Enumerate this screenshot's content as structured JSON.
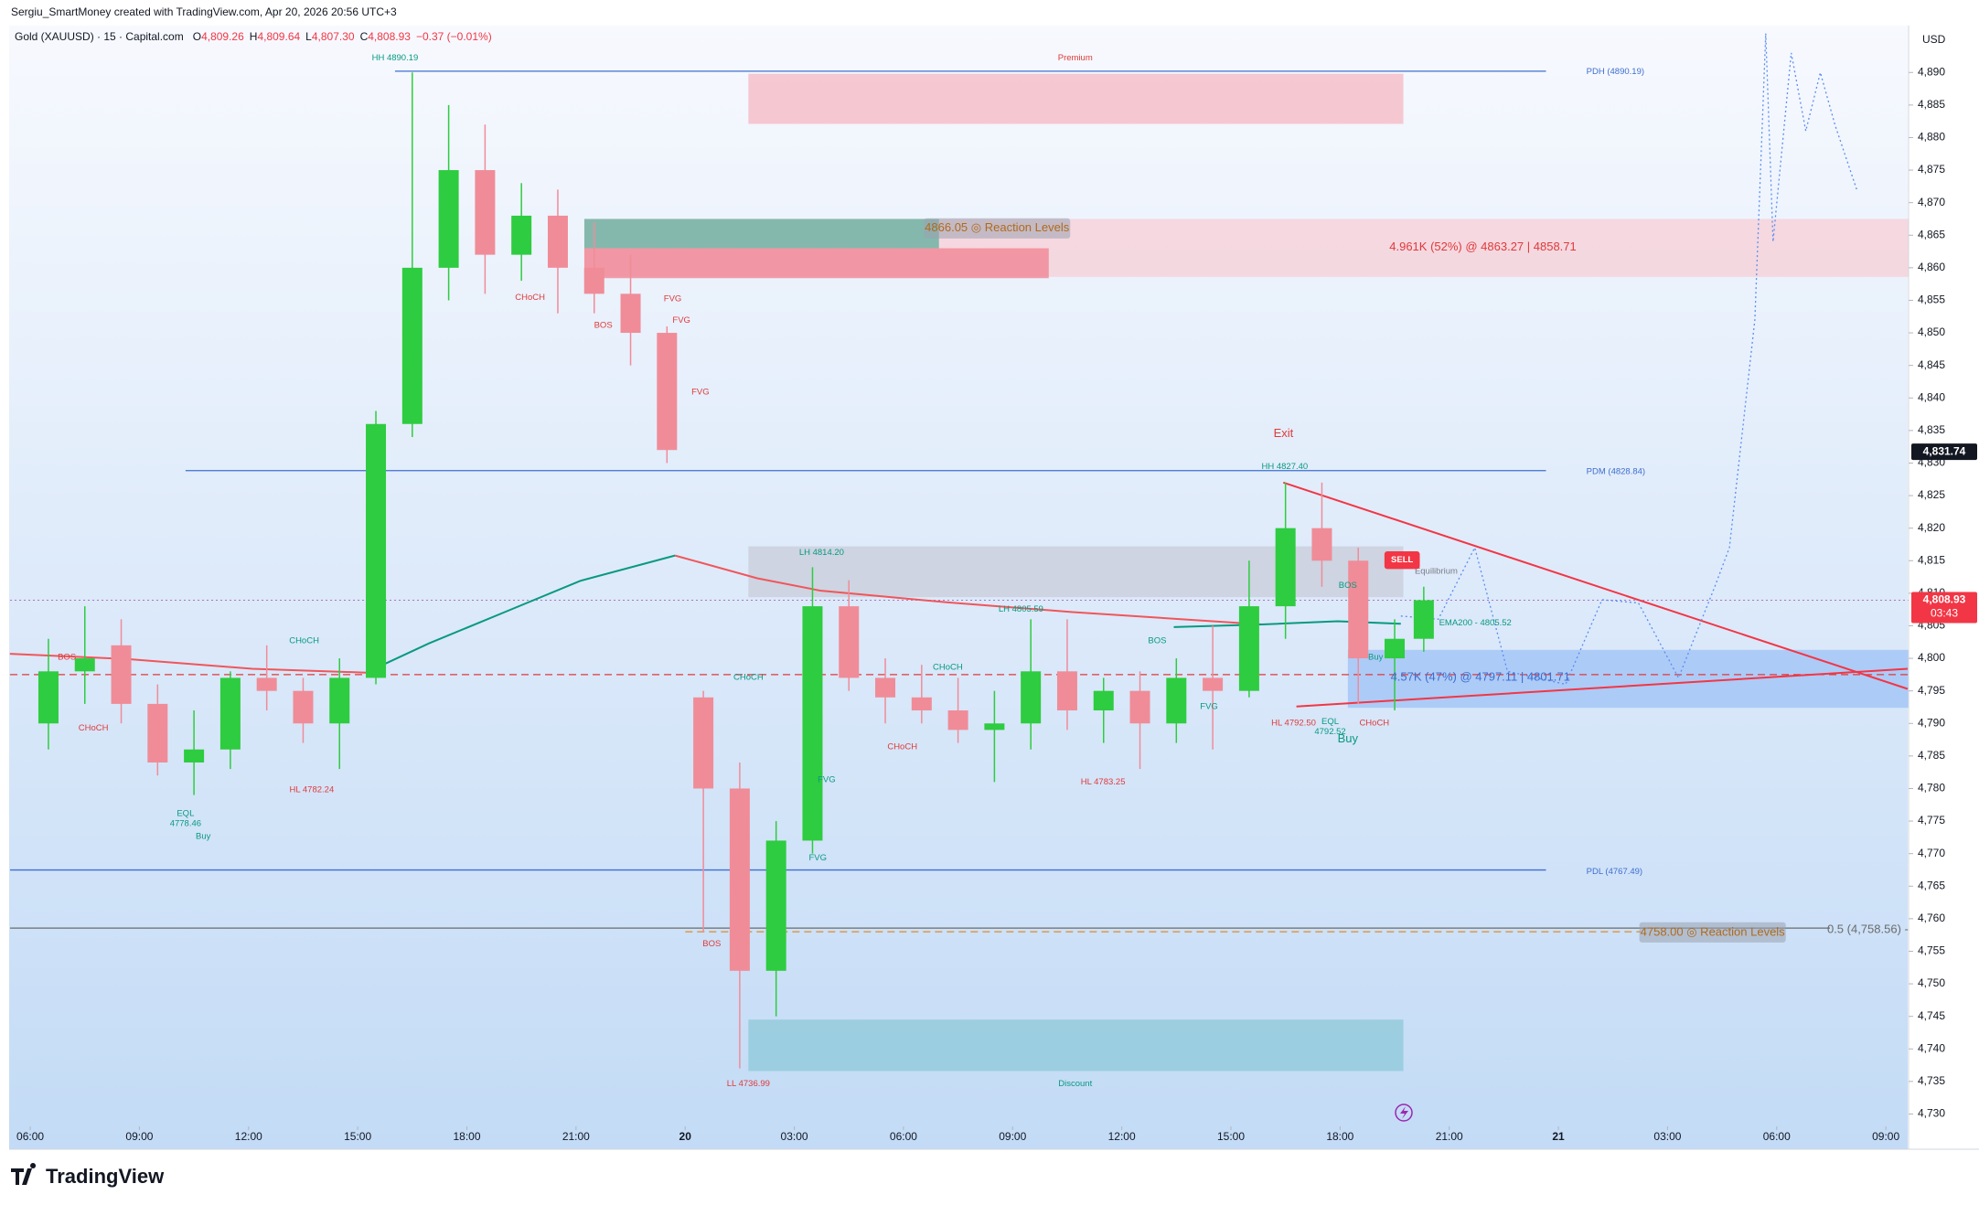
{
  "header": {
    "credit": "Sergiu_SmartMoney created with TradingView.com, Apr 20, 2026 20:56 UTC+3",
    "symbol": "Gold (XAUUSD) · 15 · Capital.com",
    "ohlc": [
      {
        "key": "O",
        "value": "4,809.26"
      },
      {
        "key": "H",
        "value": "4,809.64"
      },
      {
        "key": "L",
        "value": "4,807.30"
      },
      {
        "key": "C",
        "value": "4,808.93"
      }
    ],
    "change": "−0.37 (−0.01%)",
    "currency": "USD"
  },
  "footer": {
    "brand": "TradingView"
  },
  "chart_data": {
    "type": "candlestick",
    "up_color": "#2ecc40",
    "down_color": "#f08c98",
    "xlim": [
      -0.58,
      51.6
    ],
    "ylim": [
      4728.1,
      4897.2
    ],
    "xticks": [
      {
        "value": 0,
        "label": "06:00"
      },
      {
        "value": 3,
        "label": "09:00"
      },
      {
        "value": 6,
        "label": "12:00"
      },
      {
        "value": 9,
        "label": "15:00"
      },
      {
        "value": 12,
        "label": "18:00"
      },
      {
        "value": 15,
        "label": "21:00"
      },
      {
        "value": 18,
        "label": "20"
      },
      {
        "value": 21,
        "label": "03:00"
      },
      {
        "value": 24,
        "label": "06:00"
      },
      {
        "value": 27,
        "label": "09:00"
      },
      {
        "value": 30,
        "label": "12:00"
      },
      {
        "value": 33,
        "label": "15:00"
      },
      {
        "value": 36,
        "label": "18:00"
      },
      {
        "value": 39,
        "label": "21:00"
      },
      {
        "value": 42,
        "label": "21"
      },
      {
        "value": 45,
        "label": "03:00"
      },
      {
        "value": 48,
        "label": "06:00"
      },
      {
        "value": 51,
        "label": "09:00"
      }
    ],
    "yticks": [
      {
        "value": 4730,
        "label": "4,730"
      },
      {
        "value": 4735,
        "label": "4,735"
      },
      {
        "value": 4740,
        "label": "4,740"
      },
      {
        "value": 4745,
        "label": "4,745"
      },
      {
        "value": 4750,
        "label": "4,750"
      },
      {
        "value": 4755,
        "label": "4,755"
      },
      {
        "value": 4760,
        "label": "4,760"
      },
      {
        "value": 4765,
        "label": "4,765"
      },
      {
        "value": 4770,
        "label": "4,770"
      },
      {
        "value": 4775,
        "label": "4,775"
      },
      {
        "value": 4780,
        "label": "4,780"
      },
      {
        "value": 4785,
        "label": "4,785"
      },
      {
        "value": 4790,
        "label": "4,790"
      },
      {
        "value": 4795,
        "label": "4,795"
      },
      {
        "value": 4800,
        "label": "4,800"
      },
      {
        "value": 4805,
        "label": "4,805"
      },
      {
        "value": 4810,
        "label": "4,810"
      },
      {
        "value": 4815,
        "label": "4,815"
      },
      {
        "value": 4820,
        "label": "4,820"
      },
      {
        "value": 4825,
        "label": "4,825"
      },
      {
        "value": 4830,
        "label": "4,830"
      },
      {
        "value": 4835,
        "label": "4,835"
      },
      {
        "value": 4840,
        "label": "4,840"
      },
      {
        "value": 4845,
        "label": "4,845"
      },
      {
        "value": 4850,
        "label": "4,850"
      },
      {
        "value": 4855,
        "label": "4,855"
      },
      {
        "value": 4860,
        "label": "4,860"
      },
      {
        "value": 4865,
        "label": "4,865"
      },
      {
        "value": 4870,
        "label": "4,870"
      },
      {
        "value": 4875,
        "label": "4,875"
      },
      {
        "value": 4880,
        "label": "4,880"
      },
      {
        "value": 4885,
        "label": "4,885"
      },
      {
        "value": 4890,
        "label": "4,890"
      }
    ],
    "x": [
      0.5,
      1.5,
      2.5,
      3.5,
      4.5,
      5.5,
      6.5,
      7.5,
      8.5,
      9.5,
      10.5,
      11.5,
      12.5,
      13.5,
      14.5,
      15.5,
      16.5,
      17.5,
      18.5,
      19.5,
      20.5,
      21.5,
      22.5,
      23.5,
      24.5,
      25.5,
      26.5,
      27.5,
      28.5,
      29.5,
      30.5,
      31.5,
      32.5,
      33.5,
      34.5,
      35.5,
      36.5,
      37.5,
      38.3
    ],
    "open": [
      4790,
      4798,
      4802,
      4793,
      4784,
      4786,
      4797,
      4795,
      4790,
      4797,
      4836,
      4860,
      4875,
      4862,
      4868,
      4860,
      4856,
      4850,
      4794,
      4780,
      4752,
      4772,
      4808,
      4797,
      4794,
      4792,
      4789,
      4790,
      4798,
      4792,
      4795,
      4790,
      4797,
      4795,
      4808,
      4820,
      4815,
      4800,
      4803
    ],
    "high": [
      4803,
      4808,
      4806,
      4796,
      4792,
      4798,
      4802,
      4797,
      4800,
      4838,
      4890,
      4885,
      4882,
      4873,
      4872,
      4867,
      4862,
      4851,
      4795,
      4784,
      4775,
      4814,
      4812,
      4800,
      4799,
      4797,
      4795,
      4806,
      4806,
      4797,
      4798,
      4800,
      4805,
      4815,
      4827,
      4827,
      4817,
      4806,
      4811
    ],
    "low": [
      4786,
      4793,
      4790,
      4782,
      4779,
      4783,
      4792,
      4787,
      4783,
      4796,
      4834,
      4855,
      4856,
      4858,
      4853,
      4853,
      4845,
      4830,
      4758,
      4737,
      4745,
      4770,
      4795,
      4790,
      4790,
      4787,
      4781,
      4786,
      4789,
      4787,
      4783,
      4787,
      4786,
      4794,
      4803,
      4811,
      4793,
      4792,
      4801
    ],
    "close": [
      4798,
      4800,
      4793,
      4784,
      4786,
      4797,
      4795,
      4790,
      4797,
      4836,
      4860,
      4875,
      4862,
      4868,
      4860,
      4856,
      4850,
      4832,
      4780,
      4752,
      4772,
      4808,
      4797,
      4794,
      4792,
      4789,
      4790,
      4798,
      4792,
      4795,
      4790,
      4797,
      4795,
      4808,
      4820,
      4815,
      4800,
      4803,
      4808.93
    ],
    "lines": [
      {
        "color": "#f0565a",
        "style": "solid",
        "x": [
          -0.56,
          2.64,
          6.1,
          9.23
        ],
        "values": [
          4800.7,
          4799.9,
          4798.4,
          4797.8
        ]
      },
      {
        "color": "#089981",
        "style": "solid",
        "x": [
          9.23,
          10.96,
          13.04,
          15.12,
          17.72
        ],
        "values": [
          4797.8,
          4802.3,
          4807.1,
          4811.9,
          4815.8
        ]
      },
      {
        "color": "#f0565a",
        "style": "solid",
        "x": [
          17.72,
          19.98,
          21.71,
          25.18,
          28.65,
          33.85
        ],
        "values": [
          4815.8,
          4812.3,
          4810.4,
          4808.6,
          4807.1,
          4805.2
        ]
      },
      {
        "color": "#089981",
        "style": "solid",
        "x": [
          31.43,
          33.85,
          35.93,
          37.67
        ],
        "values": [
          4804.8,
          4805.2,
          4805.7,
          4805.3
        ]
      },
      {
        "color": "#f23645",
        "style": "solid",
        "x": [
          34.44,
          51.6
        ],
        "values": [
          4827,
          4795.3
        ]
      },
      {
        "color": "#f23645",
        "style": "solid",
        "x": [
          34.8,
          51.6
        ],
        "values": [
          4792.6,
          4798.4
        ]
      },
      {
        "color": "#5b8def",
        "style": "dotted",
        "x": [
          37.67,
          38.7,
          39.7,
          40.6,
          42.2,
          43.2,
          44.2,
          45.3,
          46.3,
          46.7,
          47.4,
          47.7,
          47.9,
          48.4,
          48.8,
          49.2,
          49.6,
          50.2
        ],
        "values": [
          4806.5,
          4806,
          4817,
          4798,
          4796,
          4809,
          4808.5,
          4797,
          4811,
          4817,
          4852,
          4896,
          4864,
          4893,
          4881,
          4890,
          4882,
          4872
        ]
      }
    ],
    "levels": [
      {
        "value": 4890.19,
        "color": "#3d6ecf",
        "style": "solid"
      },
      {
        "value": 4828.84,
        "color": "#3d6ecf",
        "style": "solid"
      },
      {
        "value": 4767.49,
        "color": "#3d6ecf",
        "style": "solid"
      },
      {
        "value": 4797.5,
        "color": "#e03a3a",
        "style": "dashed"
      },
      {
        "value": 4758,
        "color": "#e08a2a",
        "style": "dashed"
      },
      {
        "value": 4758.56,
        "color": "#6b6b6b",
        "style": "solid"
      },
      {
        "value": 4808.93,
        "color": "#b070c0",
        "style": "dotted"
      }
    ],
    "zones": [
      {
        "top": 4889.8,
        "bottom": 4882.1,
        "color": "#f5b8c2"
      },
      {
        "top": 4744.5,
        "bottom": 4736.6,
        "color": "#8cc8d8"
      },
      {
        "top": 4817.2,
        "bottom": 4809.4,
        "color": "#c8ccd8"
      },
      {
        "top": 4801.3,
        "bottom": 4792.4,
        "color": "#9ec2f5"
      },
      {
        "top": 4867.5,
        "bottom": 4858.6,
        "color": "#f7cfd6"
      },
      {
        "top": 4863,
        "bottom": 4858.4,
        "color": "#f08090"
      },
      {
        "top": 4867.5,
        "bottom": 4863,
        "color": "#5fae9c"
      }
    ],
    "annotations": [
      "HH 4890.19",
      "Premium",
      "CHoCH",
      "BOS",
      "CHoCH",
      "EQL",
      "4778.46",
      "Buy",
      "HL 4782.24",
      "CHoCH",
      "BOS",
      "FVG",
      "FVG",
      "FVG",
      "LH 4814.20",
      "CHoCH",
      "FVG",
      "FVG",
      "BOS",
      "LL 4736.99",
      "Discount",
      "LH 4805.59",
      "CHoCH",
      "CHoCH",
      "HL 4783.25",
      "BOS",
      "FVG",
      "Exit",
      "HH 4827.40",
      "BOS",
      "Equilibrium",
      "EMA200 - 4805.52",
      "HL 4792.50",
      "EQL",
      "4792.52",
      "CHoCH",
      "Buy",
      "Buy",
      "PDH (4890.19)",
      "PDM (4828.84)",
      "PDL (4767.49)",
      "4866.05 ◎ Reaction Levels",
      "4.961K (52%) @ 4863.27 | 4858.71",
      "4.57K (47%) @ 4797.11 | 4801.71",
      "4758.00 ◎ Reaction Levels",
      "0.5 (4,758.56) -",
      "SELL"
    ],
    "price_tags": [
      {
        "value": 4831.74,
        "label": "4,831.74",
        "color": "#131722"
      },
      {
        "value": 4808.93,
        "label": "4,808.93",
        "countdown": "03:43",
        "color": "#f23645"
      }
    ]
  }
}
